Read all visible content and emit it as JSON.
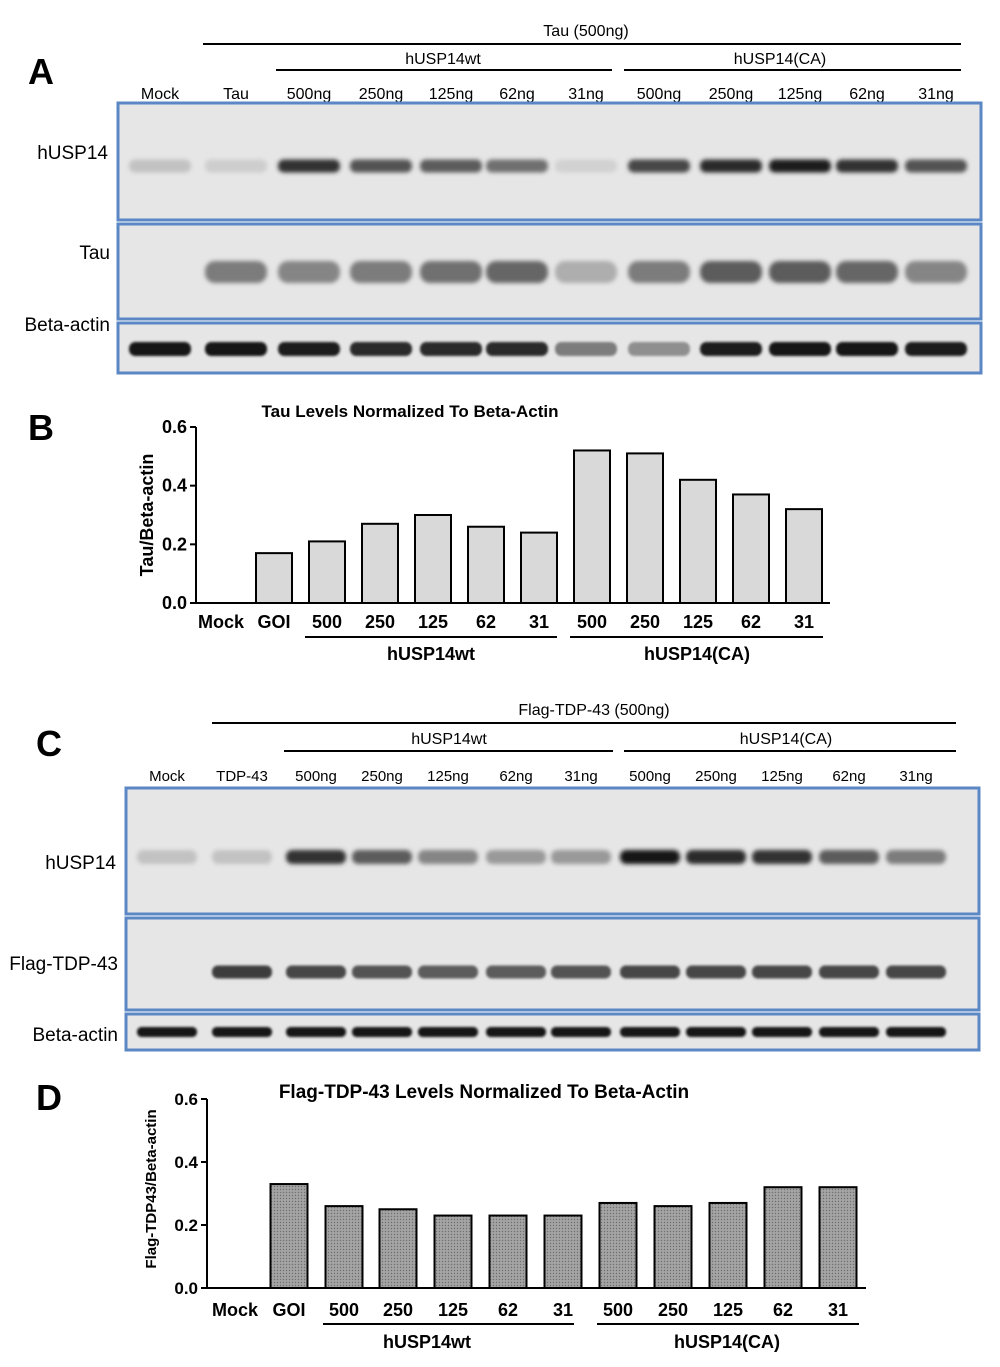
{
  "figure": {
    "panel_letters": [
      "A",
      "B",
      "C",
      "D"
    ]
  },
  "blot_a": {
    "top_label": "Tau (500ng)",
    "group_wt": "hUSP14wt",
    "group_ca": "hUSP14(CA)",
    "lanes": [
      "Mock",
      "Tau",
      "500ng",
      "250ng",
      "125ng",
      "62ng",
      "31ng",
      "500ng",
      "250ng",
      "125ng",
      "62ng",
      "31ng"
    ],
    "rows": [
      "hUSP14",
      "Tau",
      "Beta-actin"
    ],
    "band_intensity": {
      "hUSP14": [
        0.15,
        0.1,
        0.85,
        0.7,
        0.65,
        0.55,
        0.08,
        0.75,
        0.9,
        0.95,
        0.85,
        0.7
      ],
      "Tau": [
        0.0,
        0.5,
        0.45,
        0.5,
        0.55,
        0.6,
        0.25,
        0.5,
        0.65,
        0.65,
        0.6,
        0.45
      ],
      "Beta-actin": [
        1.0,
        1.0,
        0.95,
        0.9,
        0.9,
        0.9,
        0.5,
        0.4,
        0.95,
        1.0,
        1.0,
        0.95
      ]
    }
  },
  "blot_c": {
    "top_label": "Flag-TDP-43 (500ng)",
    "group_wt": "hUSP14wt",
    "group_ca": "hUSP14(CA)",
    "lanes": [
      "Mock",
      "TDP-43",
      "500ng",
      "250ng",
      "125ng",
      "62ng",
      "31ng",
      "500ng",
      "250ng",
      "125ng",
      "62ng",
      "31ng"
    ],
    "rows": [
      "hUSP14",
      "Flag-TDP-43",
      "Beta-actin"
    ],
    "band_intensity": {
      "hUSP14": [
        0.15,
        0.15,
        0.85,
        0.65,
        0.45,
        0.35,
        0.35,
        1.0,
        0.9,
        0.85,
        0.65,
        0.5
      ],
      "Flag-TDP-43": [
        0.0,
        0.8,
        0.75,
        0.7,
        0.65,
        0.65,
        0.7,
        0.75,
        0.75,
        0.75,
        0.75,
        0.75
      ],
      "Beta-actin": [
        1.0,
        1.0,
        1.0,
        1.0,
        1.0,
        1.0,
        1.0,
        1.0,
        1.0,
        1.0,
        1.0,
        1.0
      ]
    }
  },
  "chart_data": [
    {
      "type": "bar",
      "panel": "B",
      "title": "Tau Levels Normalized To Beta-Actin",
      "ylabel": "Tau/Beta-actin",
      "categories": [
        "Mock",
        "GOI",
        "500",
        "250",
        "125",
        "62",
        "31",
        "500",
        "250",
        "125",
        "62",
        "31"
      ],
      "values": [
        0,
        0.17,
        0.21,
        0.27,
        0.3,
        0.26,
        0.24,
        0.52,
        0.51,
        0.42,
        0.37,
        0.32
      ],
      "ylim": [
        0,
        0.6
      ],
      "yticks": [
        "0.0",
        "0.2",
        "0.4",
        "0.6"
      ],
      "groups": [
        "hUSP14wt",
        "hUSP14(CA)"
      ],
      "bar_color": "#d9d9d9",
      "grid": false
    },
    {
      "type": "bar",
      "panel": "D",
      "title": "Flag-TDP-43 Levels Normalized To Beta-Actin",
      "ylabel": "Flag-TDP43/Beta-actin",
      "categories": [
        "Mock",
        "GOI",
        "500",
        "250",
        "125",
        "62",
        "31",
        "500",
        "250",
        "125",
        "62",
        "31"
      ],
      "values": [
        0,
        0.33,
        0.26,
        0.25,
        0.23,
        0.23,
        0.23,
        0.27,
        0.26,
        0.27,
        0.32,
        0.32
      ],
      "ylim": [
        0,
        0.6
      ],
      "yticks": [
        "0.0",
        "0.2",
        "0.4",
        "0.6"
      ],
      "groups": [
        "hUSP14wt",
        "hUSP14(CA)"
      ],
      "bar_color": "#a8a8a8",
      "grid": false
    }
  ]
}
